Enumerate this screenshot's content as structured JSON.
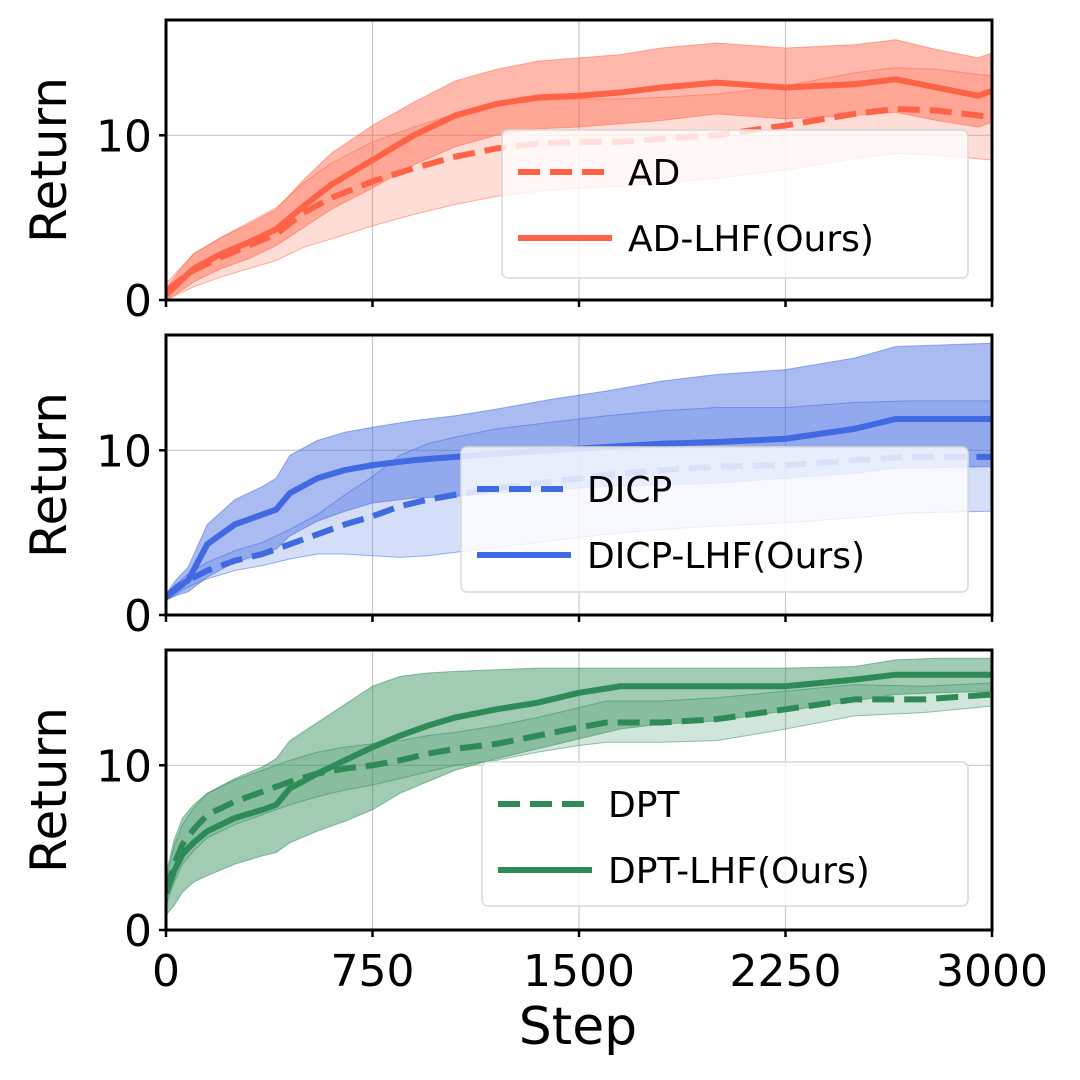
{
  "chart_data": {
    "type": "line",
    "x_axis": {
      "label": "Step",
      "range": [
        0,
        3000
      ],
      "ticks": [
        0,
        750,
        1500,
        2250,
        3000
      ],
      "tick_labels": [
        "0",
        "750",
        "1500",
        "2250",
        "3000"
      ]
    },
    "grid": true,
    "panels": [
      {
        "id": "ad",
        "ylabel": "Return",
        "ylim": [
          0,
          17
        ],
        "yticks": [
          0,
          10
        ],
        "ytick_labels": [
          "0",
          "10"
        ],
        "color": "#ff6347",
        "legend_position": "lower-right",
        "series": [
          {
            "name": "AD",
            "style": "dashed",
            "x": [
              0,
              50,
              100,
              200,
              300,
              400,
              500,
              600,
              750,
              900,
              1050,
              1200,
              1350,
              1500,
              1650,
              1800,
              2000,
              2250,
              2500,
              2650,
              2800,
              3000
            ],
            "mean": [
              0.5,
              1.2,
              1.8,
              2.6,
              3.3,
              4.0,
              5.3,
              6.2,
              7.2,
              8.0,
              8.7,
              9.2,
              9.5,
              9.6,
              9.6,
              9.8,
              10.0,
              10.6,
              11.3,
              11.6,
              11.5,
              11.1
            ],
            "low": [
              0.0,
              0.4,
              0.8,
              1.4,
              1.9,
              2.4,
              3.2,
              3.7,
              4.5,
              5.2,
              5.8,
              6.3,
              6.6,
              6.8,
              6.9,
              7.1,
              7.4,
              7.9,
              8.6,
              8.9,
              8.8,
              8.5
            ],
            "high": [
              1.0,
              1.9,
              2.8,
              3.8,
              4.7,
              5.6,
              7.1,
              8.3,
              9.6,
              10.5,
              11.3,
              11.8,
              12.1,
              12.2,
              12.2,
              12.3,
              12.5,
              13.0,
              13.8,
              14.1,
              14.0,
              13.6
            ]
          },
          {
            "name": "AD-LHF(Ours)",
            "style": "solid",
            "x": [
              0,
              50,
              100,
              200,
              300,
              400,
              500,
              600,
              750,
              900,
              1050,
              1200,
              1350,
              1500,
              1650,
              1800,
              2000,
              2250,
              2500,
              2650,
              2800,
              2950,
              3000
            ],
            "mean": [
              0.3,
              1.1,
              1.9,
              2.8,
              3.5,
              4.3,
              5.7,
              7.0,
              8.5,
              10.0,
              11.2,
              11.9,
              12.3,
              12.4,
              12.6,
              12.9,
              13.2,
              12.9,
              13.1,
              13.4,
              12.9,
              12.4,
              12.7
            ],
            "low": [
              0.0,
              0.5,
              1.1,
              1.9,
              2.5,
              3.3,
              4.4,
              5.5,
              6.8,
              8.2,
              9.3,
              10.0,
              10.4,
              10.5,
              10.7,
              10.9,
              11.3,
              11.0,
              11.2,
              11.4,
              10.9,
              10.5,
              10.8
            ],
            "high": [
              0.7,
              1.8,
              2.8,
              3.8,
              4.6,
              5.5,
              7.3,
              8.9,
              10.6,
              12.0,
              13.3,
              14.0,
              14.5,
              14.7,
              14.9,
              15.3,
              15.6,
              15.3,
              15.5,
              15.8,
              15.2,
              14.7,
              15.0
            ]
          }
        ]
      },
      {
        "id": "dicp",
        "ylabel": "Return",
        "ylim": [
          0,
          17
        ],
        "yticks": [
          0,
          10
        ],
        "ytick_labels": [
          "0",
          "10"
        ],
        "color": "#4169e1",
        "legend_position": "lower-right",
        "series": [
          {
            "name": "DICP",
            "style": "dashed",
            "x": [
              0,
              40,
              80,
              150,
              250,
              350,
              450,
              550,
              650,
              750,
              850,
              950,
              1050,
              1200,
              1400,
              1600,
              1800,
              2000,
              2250,
              2500,
              2700,
              3000
            ],
            "mean": [
              1.1,
              1.6,
              2.1,
              2.7,
              3.3,
              3.7,
              4.3,
              4.9,
              5.5,
              6.0,
              6.6,
              7.0,
              7.3,
              7.7,
              8.1,
              8.5,
              8.8,
              9.0,
              9.1,
              9.4,
              9.6,
              9.6
            ],
            "low": [
              0.9,
              1.3,
              1.7,
              2.2,
              2.7,
              3.0,
              3.4,
              3.7,
              3.7,
              3.6,
              3.5,
              3.6,
              3.8,
              4.1,
              4.5,
              4.9,
              5.2,
              5.4,
              5.6,
              5.9,
              6.2,
              6.3
            ],
            "high": [
              1.3,
              1.9,
              2.5,
              3.2,
              3.9,
              4.4,
              5.2,
              6.1,
              7.3,
              8.4,
              9.7,
              10.4,
              10.8,
              11.3,
              11.7,
              12.1,
              12.4,
              12.6,
              12.6,
              12.9,
              13.0,
              13.0
            ]
          },
          {
            "name": "DICP-LHF(Ours)",
            "style": "solid",
            "x": [
              0,
              40,
              80,
              150,
              250,
              350,
              400,
              450,
              550,
              650,
              750,
              900,
              1050,
              1200,
              1400,
              1600,
              1800,
              2000,
              2250,
              2500,
              2650,
              3000
            ],
            "mean": [
              1.1,
              1.7,
              2.1,
              4.3,
              5.5,
              6.1,
              6.4,
              7.4,
              8.3,
              8.8,
              9.1,
              9.4,
              9.6,
              9.8,
              10.0,
              10.2,
              10.4,
              10.5,
              10.7,
              11.3,
              11.9,
              11.9
            ],
            "low": [
              0.9,
              1.2,
              1.4,
              2.3,
              3.2,
              3.7,
              4.0,
              4.8,
              5.7,
              6.3,
              6.8,
              7.1,
              7.2,
              7.4,
              7.6,
              7.8,
              7.9,
              8.0,
              8.3,
              8.6,
              8.9,
              9.0
            ],
            "high": [
              1.3,
              2.2,
              2.9,
              5.5,
              7.0,
              7.8,
              8.3,
              9.7,
              10.6,
              11.1,
              11.4,
              11.8,
              12.1,
              12.5,
              13.1,
              13.6,
              14.2,
              14.6,
              14.9,
              15.6,
              16.3,
              16.5
            ]
          }
        ]
      },
      {
        "id": "dpt",
        "ylabel": "Return",
        "ylim": [
          0,
          17
        ],
        "yticks": [
          0,
          10
        ],
        "ytick_labels": [
          "0",
          "10"
        ],
        "color": "#2e8b57",
        "legend_position": "lower-right",
        "series": [
          {
            "name": "DPT",
            "style": "dashed",
            "x": [
              0,
              30,
              60,
              100,
              150,
              250,
              350,
              450,
              550,
              650,
              750,
              850,
              950,
              1050,
              1200,
              1350,
              1500,
              1600,
              1800,
              2000,
              2250,
              2500,
              2750,
              3000
            ],
            "mean": [
              2.3,
              4.0,
              5.2,
              6.1,
              7.0,
              7.8,
              8.4,
              9.0,
              9.5,
              9.8,
              10.0,
              10.3,
              10.7,
              11.0,
              11.3,
              11.8,
              12.3,
              12.6,
              12.6,
              12.8,
              13.4,
              14.0,
              14.0,
              14.3
            ],
            "low": [
              1.5,
              2.9,
              4.0,
              4.8,
              5.6,
              6.4,
              7.0,
              7.6,
              8.1,
              8.5,
              8.8,
              9.2,
              9.6,
              10.0,
              10.3,
              10.8,
              11.2,
              11.4,
              11.4,
              11.5,
              12.2,
              13.0,
              13.2,
              13.6
            ],
            "high": [
              3.1,
              5.1,
              6.4,
              7.4,
              8.3,
              9.1,
              9.7,
              10.3,
              10.8,
              11.1,
              11.3,
              11.5,
              11.8,
              12.0,
              12.4,
              12.9,
              13.5,
              13.9,
              13.9,
              14.1,
              14.5,
              14.9,
              14.8,
              15.0
            ]
          },
          {
            "name": "DPT-LHF(Ours)",
            "style": "solid",
            "x": [
              0,
              30,
              60,
              100,
              150,
              250,
              350,
              400,
              450,
              550,
              650,
              750,
              850,
              950,
              1050,
              1200,
              1350,
              1500,
              1650,
              1800,
              2000,
              2250,
              2500,
              2650,
              2800,
              3000
            ],
            "mean": [
              2.2,
              3.6,
              4.6,
              5.3,
              6.0,
              6.8,
              7.3,
              7.6,
              8.6,
              9.5,
              10.3,
              11.1,
              11.8,
              12.4,
              12.9,
              13.4,
              13.8,
              14.4,
              14.8,
              14.8,
              14.8,
              14.8,
              15.2,
              15.5,
              15.5,
              15.5
            ],
            "low": [
              0.9,
              1.5,
              2.3,
              2.9,
              3.3,
              4.0,
              4.5,
              4.7,
              5.3,
              6.0,
              6.6,
              7.3,
              8.3,
              9.0,
              9.7,
              10.4,
              11.0,
              11.6,
              12.2,
              12.5,
              12.7,
              13.3,
              13.9,
              14.3,
              14.4,
              14.5
            ],
            "high": [
              3.4,
              5.5,
              6.8,
              7.6,
              8.3,
              9.2,
              9.9,
              10.4,
              11.5,
              12.6,
              13.7,
              14.8,
              15.4,
              15.6,
              15.7,
              15.8,
              15.9,
              15.9,
              15.9,
              15.9,
              15.9,
              15.9,
              16.0,
              16.4,
              16.5,
              16.5
            ]
          }
        ]
      }
    ]
  }
}
